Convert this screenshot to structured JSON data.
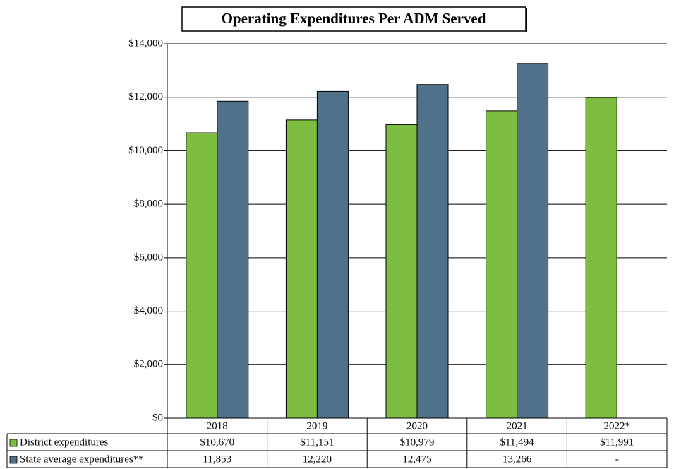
{
  "chart_data": {
    "type": "bar",
    "title": "Operating Expenditures Per ADM Served",
    "categories": [
      "2018",
      "2019",
      "2020",
      "2021",
      "2022*"
    ],
    "series": [
      {
        "name": "District expenditures",
        "color": "#7cbd42",
        "values": [
          10670,
          11151,
          10979,
          11494,
          11991
        ],
        "value_labels": [
          "$10,670",
          "$11,151",
          "$10,979",
          "$11,494",
          "$11,991"
        ]
      },
      {
        "name": "State average expenditures**",
        "color": "#4f7189",
        "values": [
          11853,
          12220,
          12475,
          13266,
          null
        ],
        "value_labels": [
          "11,853",
          "12,220",
          "12,475",
          "13,266",
          "-"
        ]
      }
    ],
    "ylim": [
      0,
      14000
    ],
    "yticks": [
      {
        "value": 0,
        "label": "$0"
      },
      {
        "value": 2000,
        "label": "$2,000"
      },
      {
        "value": 4000,
        "label": "$4,000"
      },
      {
        "value": 6000,
        "label": "$6,000"
      },
      {
        "value": 8000,
        "label": "$8,000"
      },
      {
        "value": 10000,
        "label": "$10,000"
      },
      {
        "value": 12000,
        "label": "$12,000"
      },
      {
        "value": 14000,
        "label": "$14,000"
      }
    ],
    "grid": true
  }
}
